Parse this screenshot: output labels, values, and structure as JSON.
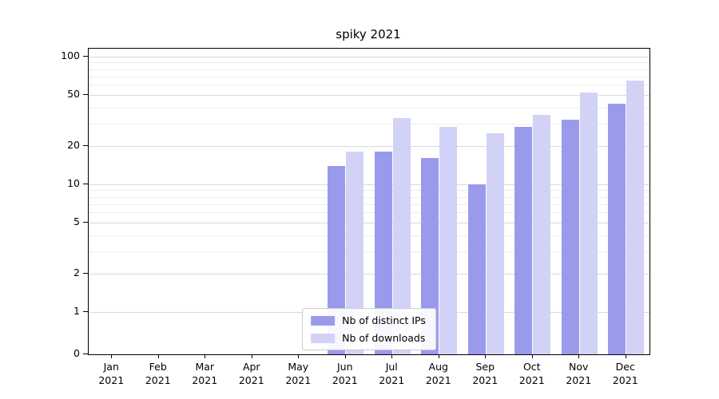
{
  "chart_data": {
    "type": "bar",
    "title": "spiky 2021",
    "yscale": "symlog",
    "grid": "horizontal",
    "legend_position": "lower center",
    "categories": [
      "Jan\n2021",
      "Feb\n2021",
      "Mar\n2021",
      "Apr\n2021",
      "May\n2021",
      "Jun\n2021",
      "Jul\n2021",
      "Aug\n2021",
      "Sep\n2021",
      "Oct\n2021",
      "Nov\n2021",
      "Dec\n2021"
    ],
    "yticks": [
      0,
      1,
      2,
      5,
      10,
      20,
      50,
      100
    ],
    "minor_yticks": [
      3,
      4,
      6,
      7,
      8,
      9,
      30,
      40,
      60,
      70,
      80,
      90
    ],
    "ylim": [
      0,
      115
    ],
    "series": [
      {
        "name": "Nb of distinct IPs",
        "color": "#9a9aed",
        "values": [
          0,
          0,
          0,
          0,
          0,
          14,
          18,
          16,
          10,
          28,
          32,
          43
        ]
      },
      {
        "name": "Nb of downloads",
        "color": "#d2d2f7",
        "values": [
          0,
          0,
          0,
          0,
          0,
          18,
          33,
          28,
          25,
          35,
          52,
          65
        ]
      }
    ]
  },
  "colors": {
    "grid_major": "#d9d9d9",
    "grid_minor": "#ededed",
    "spine": "#000000",
    "background": "#ffffff"
  }
}
